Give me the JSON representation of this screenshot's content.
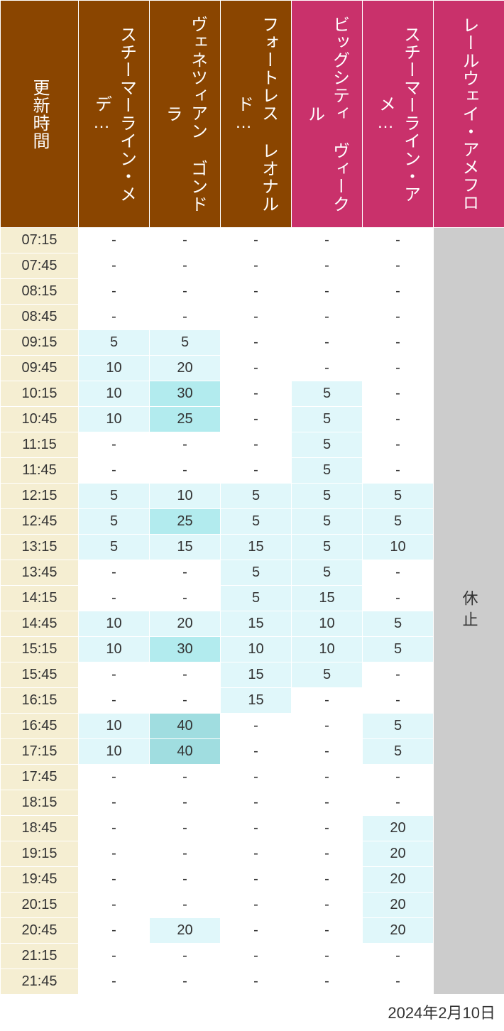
{
  "header": {
    "time_label": "更新時間",
    "columns": [
      {
        "label": "スチーマーライン・メデ…",
        "color_group": "brown"
      },
      {
        "label": "ヴェネツィアン ゴンドラ",
        "color_group": "brown"
      },
      {
        "label": "フォートレス レオナルド…",
        "color_group": "brown"
      },
      {
        "label": "ビッグシティ ヴィークル",
        "color_group": "pink"
      },
      {
        "label": "スチーマーライン・アメ…",
        "color_group": "pink"
      },
      {
        "label": "レールウェイ・アメフロ",
        "color_group": "pink"
      }
    ]
  },
  "colors": {
    "header_brown": "#8a4500",
    "header_pink": "#c9316b",
    "time_col_bg": "#f5eed2",
    "row_alt_bg": "#fdf8e4",
    "cell_white": "#ffffff",
    "cell_light": "#e0f7fa",
    "cell_mid": "#b2ebee",
    "cell_dark": "#a0dde0",
    "closed_bg": "#cccccc",
    "text": "#333333",
    "border": "#ffffff"
  },
  "closed_label": "休止",
  "footer_date": "2024年2月10日",
  "times": [
    "07:15",
    "07:45",
    "08:15",
    "08:45",
    "09:15",
    "09:45",
    "10:15",
    "10:45",
    "11:15",
    "11:45",
    "12:15",
    "12:45",
    "13:15",
    "13:45",
    "14:15",
    "14:45",
    "15:15",
    "15:45",
    "16:15",
    "16:45",
    "17:15",
    "17:45",
    "18:15",
    "18:45",
    "19:15",
    "19:45",
    "20:15",
    "20:45",
    "21:15",
    "21:45"
  ],
  "data": [
    [
      "-",
      "-",
      "-",
      "-",
      "-"
    ],
    [
      "-",
      "-",
      "-",
      "-",
      "-"
    ],
    [
      "-",
      "-",
      "-",
      "-",
      "-"
    ],
    [
      "-",
      "-",
      "-",
      "-",
      "-"
    ],
    [
      "5",
      "5",
      "-",
      "-",
      "-"
    ],
    [
      "10",
      "20",
      "-",
      "-",
      "-"
    ],
    [
      "10",
      "30",
      "-",
      "5",
      "-"
    ],
    [
      "10",
      "25",
      "-",
      "5",
      "-"
    ],
    [
      "-",
      "-",
      "-",
      "5",
      "-"
    ],
    [
      "-",
      "-",
      "-",
      "5",
      "-"
    ],
    [
      "5",
      "10",
      "5",
      "5",
      "5"
    ],
    [
      "5",
      "25",
      "5",
      "5",
      "5"
    ],
    [
      "5",
      "15",
      "15",
      "5",
      "10"
    ],
    [
      "-",
      "-",
      "5",
      "5",
      "-"
    ],
    [
      "-",
      "-",
      "5",
      "15",
      "-"
    ],
    [
      "10",
      "20",
      "15",
      "10",
      "5"
    ],
    [
      "10",
      "30",
      "10",
      "10",
      "5"
    ],
    [
      "-",
      "-",
      "15",
      "5",
      "-"
    ],
    [
      "-",
      "-",
      "15",
      "-",
      "-"
    ],
    [
      "10",
      "40",
      "-",
      "-",
      "5"
    ],
    [
      "10",
      "40",
      "-",
      "-",
      "5"
    ],
    [
      "-",
      "-",
      "-",
      "-",
      "-"
    ],
    [
      "-",
      "-",
      "-",
      "-",
      "-"
    ],
    [
      "-",
      "-",
      "-",
      "-",
      "20"
    ],
    [
      "-",
      "-",
      "-",
      "-",
      "20"
    ],
    [
      "-",
      "-",
      "-",
      "-",
      "20"
    ],
    [
      "-",
      "-",
      "-",
      "-",
      "20"
    ],
    [
      "-",
      "20",
      "-",
      "-",
      "20"
    ],
    [
      "-",
      "-",
      "-",
      "-",
      "-"
    ],
    [
      "-",
      "-",
      "-",
      "-",
      "-"
    ]
  ],
  "color_thresholds": {
    "none": "-",
    "light_max": 20,
    "mid_max": 30
  }
}
